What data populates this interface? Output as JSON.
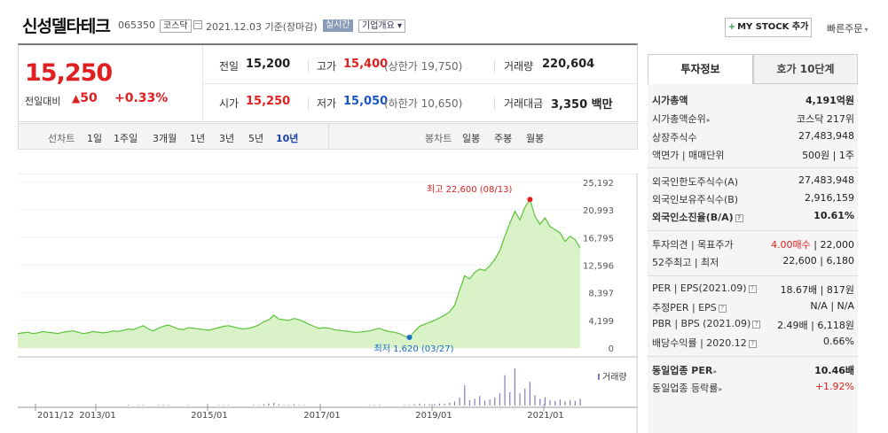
{
  "header": {
    "company": "신성델타테크",
    "code": "065350",
    "market": "코스닥",
    "date_text": "2021.12.03  기준(장마감)",
    "realtime": "실시간",
    "overview": "기업개요 ▾",
    "mystock": "MY STOCK 추가",
    "quick_order": "빠른주문"
  },
  "summary": {
    "price": "15,250",
    "prev_label": "전일대비",
    "change": "50",
    "change_rate": "+0.33%",
    "prev_close_label": "전일",
    "prev_close": "15,200",
    "open_label": "시가",
    "open": "15,250",
    "high_label": "고가",
    "high": "15,400",
    "upper_limit": "(상한가 19,750)",
    "low_label": "저가",
    "low": "15,050",
    "lower_limit": "(하한가 10,650)",
    "volume_label": "거래량",
    "volume": "220,604",
    "amount_label": "거래대금",
    "amount": "3,350 백만"
  },
  "controls": {
    "line_label": "선차트",
    "periods": [
      "1일",
      "1주일",
      "3개월",
      "1년",
      "3년",
      "5년",
      "10년"
    ],
    "active_period": "10년",
    "candle_label": "봉차트",
    "candles": [
      "일봉",
      "주봉",
      "월봉"
    ]
  },
  "chart_data": {
    "type": "area",
    "x_ticks": [
      "2011/12",
      "2013/01",
      "2015/01",
      "2017/01",
      "2019/01",
      "2021/01"
    ],
    "y_ticks": [
      25192,
      20993,
      16795,
      12596,
      8397,
      4199,
      0
    ],
    "ylim": [
      0,
      25192
    ],
    "high_annotation": "최고 22,600 (08/13)",
    "low_annotation": "최저 1,620 (03/27)",
    "volume_label": "거래량",
    "colors": {
      "line": "#5cc33a",
      "fill": "#d9f2c8",
      "high": "#e02020",
      "low": "#1a6fc8",
      "volume": "#8a7ab8"
    },
    "series": [
      {
        "values": [
          2200,
          2300,
          2400,
          2200,
          2300,
          2500,
          2400,
          2300,
          2200,
          2400,
          2500,
          2600,
          2400,
          2200,
          2300,
          2500,
          2400,
          2300,
          2400,
          2600,
          2500,
          2700,
          2900,
          2800,
          3100,
          3400,
          2900,
          2600,
          3000,
          3300,
          3500,
          3200,
          2900,
          2800,
          3100,
          3000,
          2900,
          2800,
          2700,
          2900,
          3100,
          3300,
          3400,
          3200,
          3000,
          2900,
          3000,
          3200,
          3500,
          4000,
          4300,
          5000,
          4400,
          4300,
          4200,
          4500,
          4300,
          4000,
          3600,
          3300,
          3000,
          3100,
          3000,
          2800,
          2700,
          2600,
          2500,
          2400,
          2400,
          2500,
          2600,
          2800,
          3000,
          2700,
          2500,
          2400,
          2200,
          1800,
          1620,
          2500,
          3300,
          3600,
          3900,
          4200,
          4600,
          5000,
          5500,
          6500,
          8800,
          11000,
          10500,
          11500,
          12000,
          11800,
          12500,
          13500,
          14800,
          17000,
          19000,
          20800,
          19500,
          21400,
          22600,
          20000,
          18800,
          19800,
          18500,
          18000,
          17500,
          16200,
          17000,
          16500,
          15250
        ]
      }
    ],
    "volume": [
      0,
      0,
      0,
      0,
      0,
      0,
      0,
      0,
      0,
      0,
      0,
      0,
      0,
      0,
      0,
      0,
      0,
      0,
      0,
      0,
      0,
      0,
      1,
      0,
      1,
      1,
      0,
      0,
      1,
      1,
      1,
      0,
      0,
      0,
      1,
      0,
      0,
      0,
      0,
      0,
      1,
      1,
      1,
      0,
      0,
      0,
      0,
      1,
      1,
      2,
      3,
      4,
      2,
      1,
      1,
      2,
      1,
      1,
      0,
      0,
      0,
      0,
      0,
      0,
      0,
      0,
      0,
      0,
      0,
      0,
      1,
      1,
      1,
      0,
      0,
      0,
      0,
      1,
      1,
      2,
      3,
      2,
      2,
      2,
      3,
      3,
      4,
      6,
      12,
      30,
      8,
      10,
      14,
      7,
      9,
      12,
      18,
      45,
      20,
      55,
      18,
      25,
      35,
      15,
      10,
      12,
      8,
      7,
      9,
      6,
      8,
      7,
      10
    ]
  },
  "side": {
    "tab_info": "투자정보",
    "tab_quote": "호가 10단계",
    "rows": [
      {
        "k": "시가총액",
        "v": "4,191억원",
        "bold": true
      },
      {
        "k": "시가총액순위",
        "v": "코스닥 217위",
        "arrow": true
      },
      {
        "k": "상장주식수",
        "v": "27,483,948"
      },
      {
        "k": "액면가 | 매매단위",
        "v": "500원 | 1주"
      },
      {
        "k": "외국인한도주식수(A)",
        "v": "27,483,948"
      },
      {
        "k": "외국인보유주식수(B)",
        "v": "2,916,159"
      },
      {
        "k": "외국인소진율(B/A)",
        "v": "10.61%",
        "bold": true,
        "q": true
      },
      {
        "k": "투자의견 | 목표주가",
        "v_red": "4.00매수",
        "v": " | 22,000"
      },
      {
        "k": "52주최고 | 최저",
        "v": "22,600 | 6,180"
      },
      {
        "k": "PER | EPS(2021.09)",
        "v": "18.67배 | 817원",
        "q": true
      },
      {
        "k": "추정PER | EPS",
        "v": "N/A | N/A",
        "q": true
      },
      {
        "k": "PBR | BPS (2021.09)",
        "v": "2.49배 | 6,118원",
        "q": true
      },
      {
        "k": "배당수익률 | 2020.12",
        "v": "0.66%",
        "q": true
      },
      {
        "k": "동일업종 PER",
        "v": "10.46배",
        "bold": true,
        "arrow": true
      },
      {
        "k": "동일업종 등락률",
        "v": "+1.92%",
        "red": true,
        "arrow": true
      }
    ]
  }
}
